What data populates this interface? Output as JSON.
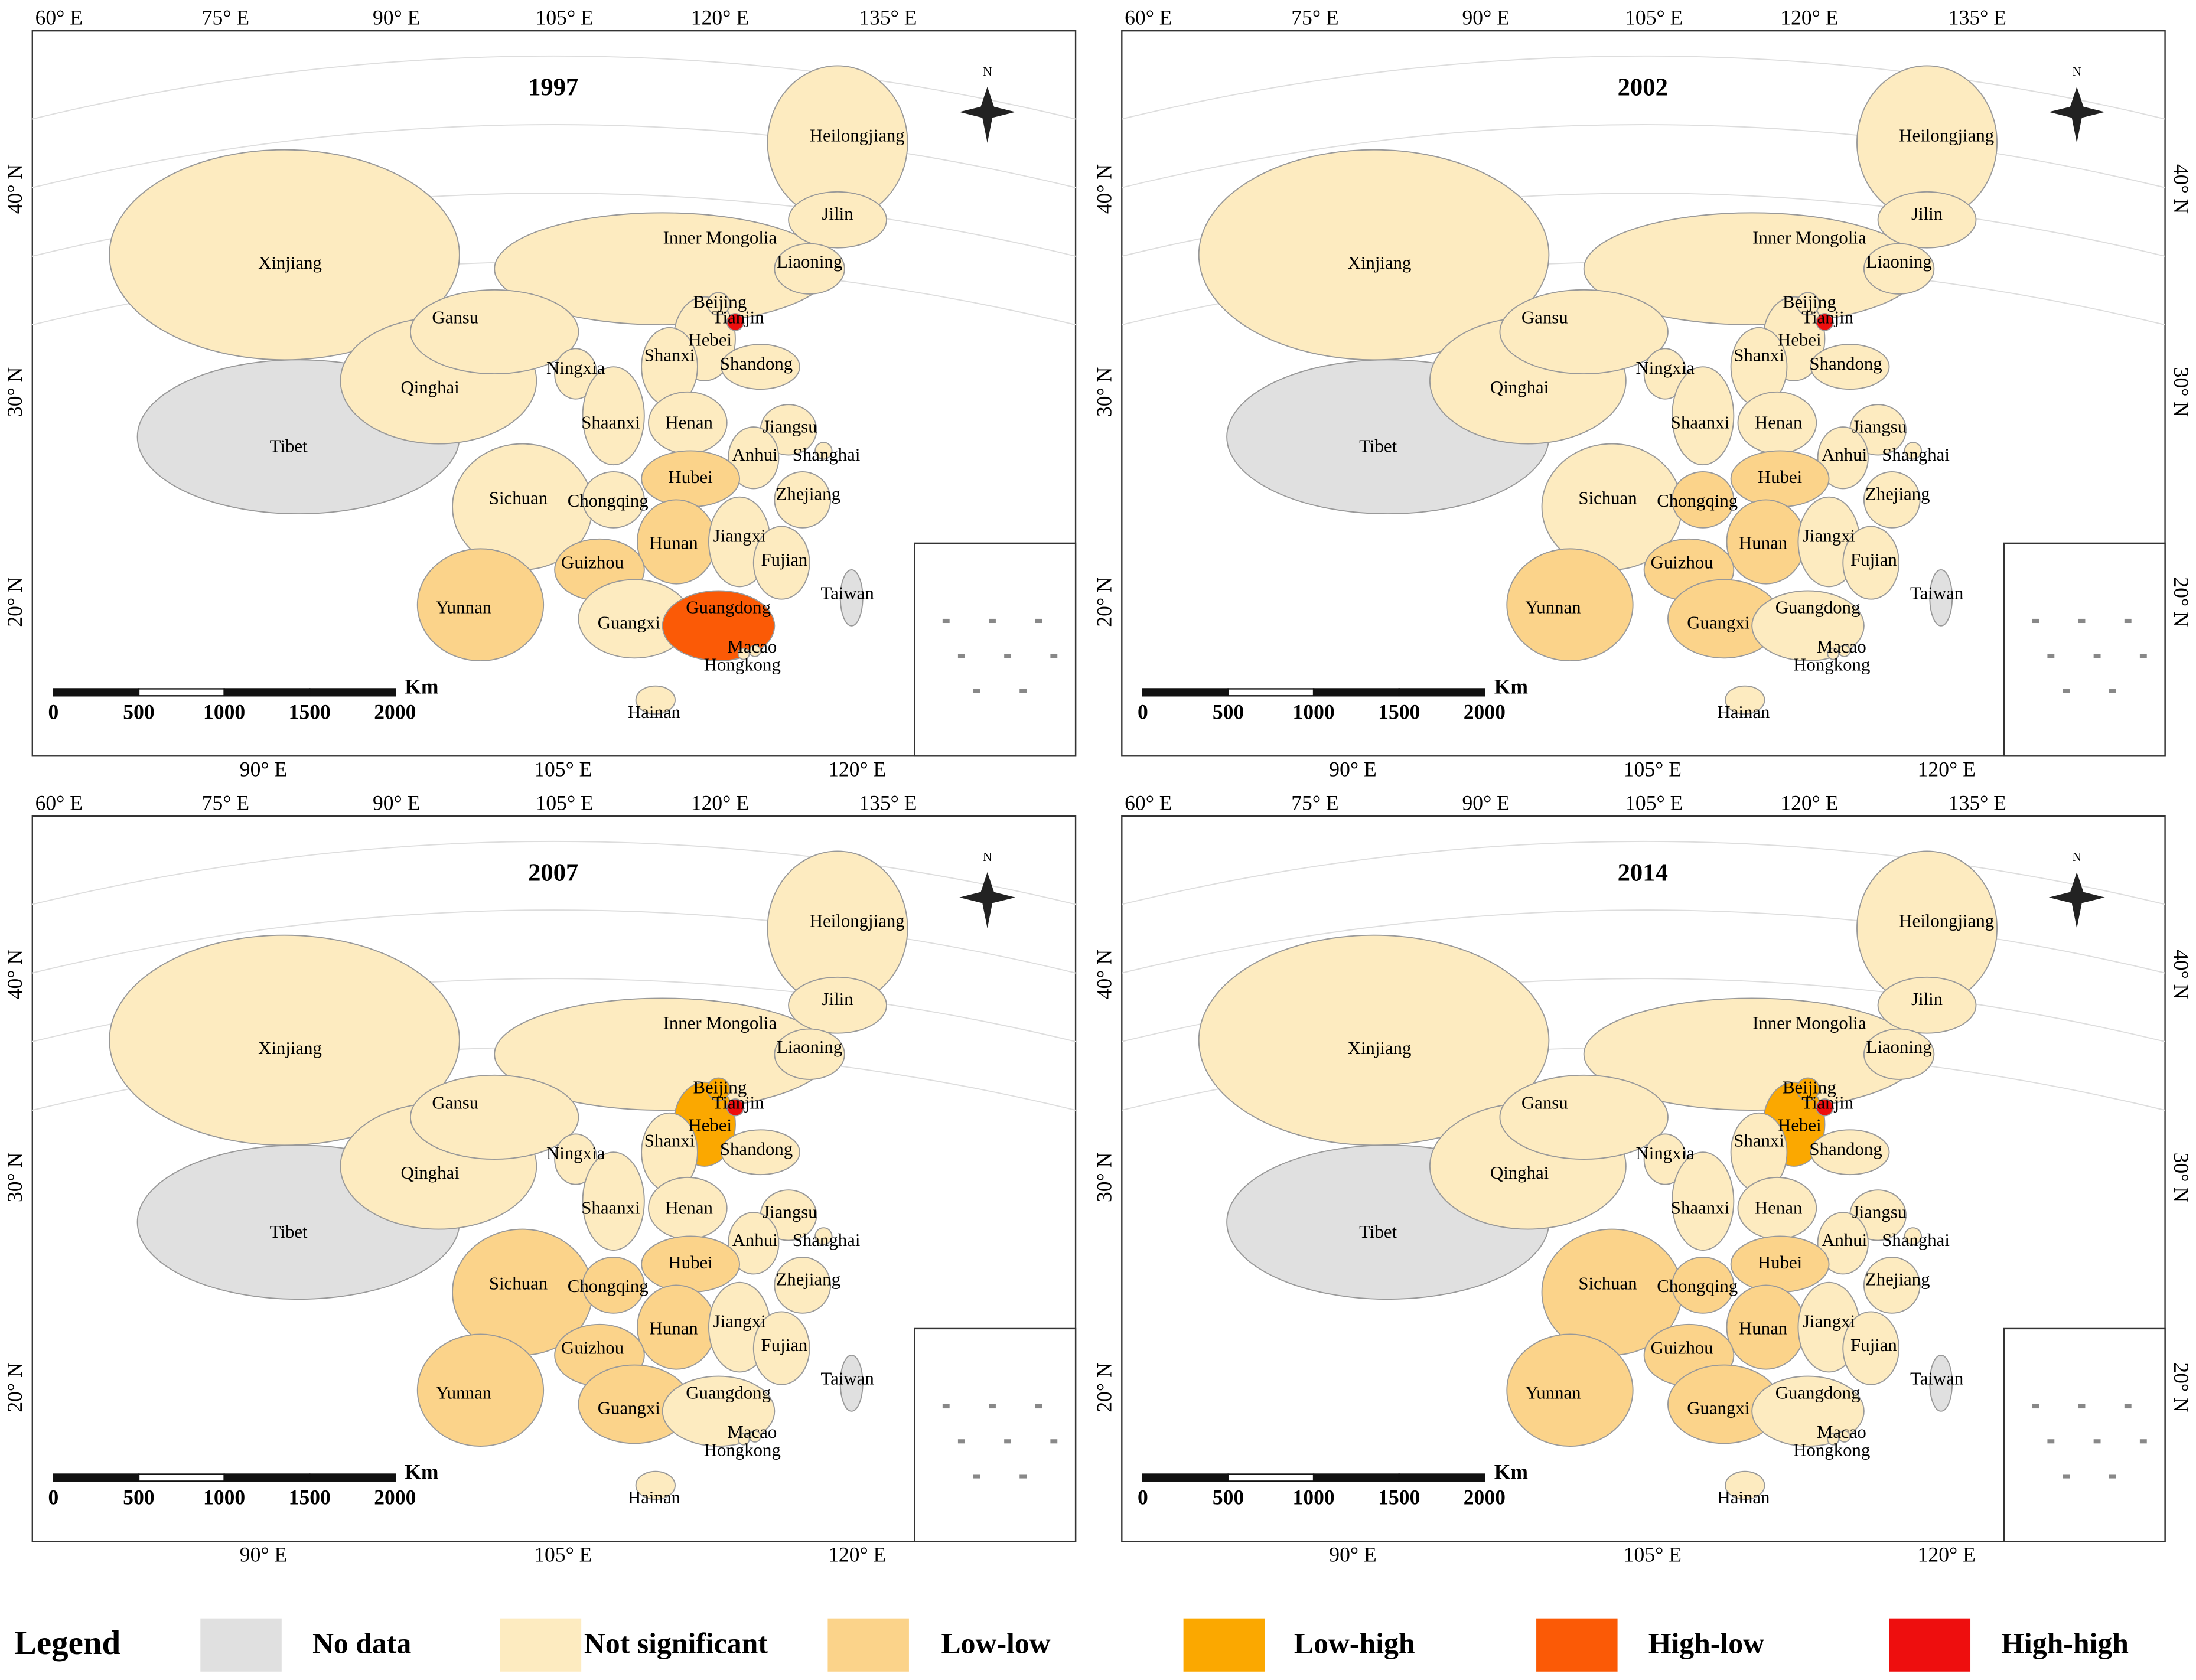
{
  "legend": {
    "title": "Legend",
    "items": [
      {
        "label": "No data",
        "color": "#e0e0e0"
      },
      {
        "label": "Not  significant",
        "color": "#fdebc0"
      },
      {
        "label": "Low-low",
        "color": "#fbd38a"
      },
      {
        "label": "Low-high",
        "color": "#fba800"
      },
      {
        "label": "High-low",
        "color": "#fb5a06"
      },
      {
        "label": "High-high",
        "color": "#ee0e0e"
      }
    ]
  },
  "axes": {
    "top": [
      "60° E",
      "75° E",
      "90° E",
      "105° E",
      "120° E",
      "135° E"
    ],
    "bottom": [
      "90° E",
      "105° E",
      "120° E"
    ],
    "lat": [
      "40° N",
      "30° N",
      "20° N"
    ]
  },
  "scale_bar": {
    "unit": "Km",
    "ticks": [
      "0",
      "500",
      "1000",
      "1500",
      "2000"
    ]
  },
  "north": "N",
  "provinces": [
    "Xinjiang",
    "Tibet",
    "Qinghai",
    "Inner Mongolia",
    "Heilongjiang",
    "Gansu",
    "Sichuan",
    "Yunnan",
    "Jilin",
    "Liaoning",
    "Hebei",
    "Beijing",
    "Tianjin",
    "Shanxi",
    "Shandong",
    "Ningxia",
    "Shaanxi",
    "Henan",
    "Jiangsu",
    "Anhui",
    "Shanghai",
    "Hubei",
    "Chongqing",
    "Zhejiang",
    "Hunan",
    "Jiangxi",
    "Guizhou",
    "Fujian",
    "Guangxi",
    "Guangdong",
    "Taiwan",
    "Macao",
    "Hongkong",
    "Hainan"
  ],
  "maps": [
    {
      "year": "1997",
      "classes": [
        1,
        0,
        1,
        1,
        1,
        1,
        1,
        2,
        1,
        1,
        1,
        1,
        5,
        1,
        1,
        1,
        1,
        1,
        1,
        1,
        1,
        2,
        1,
        1,
        2,
        1,
        2,
        1,
        1,
        4,
        0,
        1,
        1,
        1
      ]
    },
    {
      "year": "2002",
      "classes": [
        1,
        0,
        1,
        1,
        1,
        1,
        1,
        2,
        1,
        1,
        1,
        1,
        5,
        1,
        1,
        1,
        1,
        1,
        1,
        1,
        1,
        2,
        2,
        1,
        2,
        1,
        2,
        1,
        2,
        1,
        0,
        1,
        1,
        1
      ]
    },
    {
      "year": "2007",
      "classes": [
        1,
        0,
        1,
        1,
        1,
        1,
        2,
        2,
        1,
        1,
        3,
        3,
        5,
        1,
        1,
        1,
        1,
        1,
        1,
        1,
        1,
        2,
        2,
        1,
        2,
        1,
        2,
        1,
        2,
        1,
        0,
        1,
        1,
        1
      ]
    },
    {
      "year": "2014",
      "classes": [
        1,
        0,
        1,
        1,
        1,
        1,
        2,
        2,
        1,
        1,
        3,
        3,
        5,
        1,
        1,
        1,
        1,
        1,
        1,
        1,
        1,
        2,
        2,
        1,
        2,
        1,
        2,
        1,
        2,
        1,
        0,
        1,
        1,
        1
      ]
    }
  ]
}
